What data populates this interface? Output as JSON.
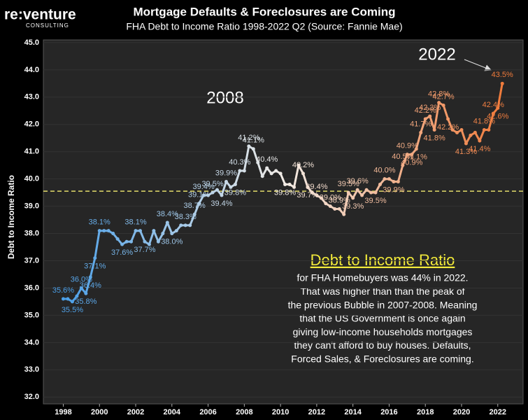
{
  "chart_data": {
    "type": "line",
    "logo": {
      "name": "re:venture",
      "tagline": "CONSULTING"
    },
    "title": "Mortgage Defaults & Foreclosures are Coming",
    "subtitle": "FHA Debt to Income Ratio 1998-2022 Q2 (Source: Fannie Mae)",
    "y_label": "Debt to Income Ratio",
    "x": [
      1998,
      1998.25,
      1998.5,
      1998.75,
      1999,
      1999.25,
      1999.5,
      1999.75,
      2000,
      2000.25,
      2000.5,
      2000.75,
      2001,
      2001.25,
      2001.5,
      2001.75,
      2002,
      2002.25,
      2002.5,
      2002.75,
      2003,
      2003.25,
      2003.5,
      2003.75,
      2004,
      2004.25,
      2004.5,
      2004.75,
      2005,
      2005.25,
      2005.5,
      2005.75,
      2006,
      2006.25,
      2006.5,
      2006.75,
      2007,
      2007.25,
      2007.5,
      2007.75,
      2008,
      2008.25,
      2008.5,
      2008.75,
      2009,
      2009.25,
      2009.5,
      2009.75,
      2010,
      2010.25,
      2010.5,
      2010.75,
      2011,
      2011.25,
      2011.5,
      2011.75,
      2012,
      2012.25,
      2012.5,
      2012.75,
      2013,
      2013.25,
      2013.5,
      2013.75,
      2014,
      2014.25,
      2014.5,
      2014.75,
      2015,
      2015.25,
      2015.5,
      2015.75,
      2016,
      2016.25,
      2016.5,
      2016.75,
      2017,
      2017.25,
      2017.5,
      2017.75,
      2018,
      2018.25,
      2018.5,
      2018.75,
      2019,
      2019.25,
      2019.5,
      2019.75,
      2020,
      2020.25,
      2020.5,
      2020.75,
      2021,
      2021.25,
      2021.5,
      2021.75,
      2022,
      2022.25
    ],
    "values": [
      35.6,
      35.6,
      35.5,
      35.7,
      36.0,
      35.8,
      36.4,
      37.1,
      38.1,
      38.1,
      38.1,
      38.0,
      37.8,
      37.6,
      37.7,
      37.7,
      38.1,
      38.1,
      37.7,
      37.6,
      38.1,
      37.7,
      38.0,
      38.4,
      38.0,
      38.1,
      38.3,
      38.3,
      38.3,
      38.7,
      39.1,
      39.4,
      39.4,
      39.5,
      39.6,
      39.4,
      39.9,
      39.7,
      39.8,
      40.3,
      40.3,
      41.2,
      41.1,
      40.6,
      40.1,
      40.4,
      40.2,
      40.3,
      40.2,
      39.8,
      39.8,
      39.7,
      40.5,
      40.2,
      39.7,
      39.5,
      39.4,
      39.3,
      39.1,
      39.0,
      38.9,
      38.9,
      38.7,
      39.5,
      39.3,
      39.6,
      39.4,
      39.6,
      39.5,
      39.5,
      39.8,
      40.0,
      40.0,
      39.9,
      39.9,
      40.5,
      40.9,
      40.9,
      41.1,
      41.7,
      42.2,
      42.3,
      41.8,
      42.8,
      42.7,
      42.2,
      41.8,
      41.7,
      41.8,
      41.3,
      41.6,
      41.7,
      41.4,
      41.8,
      41.8,
      42.4,
      42.6,
      43.5
    ],
    "value_labels": [
      "35.6%",
      null,
      "35.5%",
      null,
      "36.0%",
      "35.8%",
      "36.4%",
      "37.1%",
      "38.1%",
      null,
      null,
      null,
      null,
      "37.6%",
      null,
      null,
      "38.1%",
      null,
      "37.7%",
      null,
      null,
      null,
      null,
      "38.4%",
      "38.0%",
      null,
      null,
      "38.3%",
      null,
      "38.7%",
      "39.1%",
      "39.4%",
      null,
      "39.5%",
      null,
      "39.4%",
      "39.9%",
      null,
      "39.8%",
      "40.3%",
      null,
      "41.2%",
      "41.1%",
      null,
      null,
      "40.4%",
      null,
      null,
      null,
      "39.8%",
      null,
      null,
      null,
      "40.2%",
      "39.7%",
      null,
      "39.4%",
      null,
      null,
      "39.0%",
      null,
      "38.9%",
      null,
      "39.5%",
      "39.3%",
      "39.6%",
      null,
      null,
      null,
      "39.5%",
      null,
      "40.0%",
      null,
      "39.9%",
      null,
      "40.5%",
      "40.9%",
      "40.9%",
      "41.1%",
      "41.7%",
      "42.2%",
      "42.3%",
      "41.8%",
      "42.8%",
      "42.7%",
      "42.2%",
      null,
      null,
      null,
      "41.3%",
      null,
      null,
      "41.4%",
      "41.8%",
      null,
      "42.4%",
      "42.6%",
      "43.5%"
    ],
    "colors": [
      "#4a9fe8",
      "#f2ece6",
      "#f07a3a"
    ],
    "reference_line": {
      "value": 39.55,
      "color": "#e3dc6a"
    },
    "xlim": [
      1996.9,
      2023.4
    ],
    "xticks": [
      1998,
      2000,
      2002,
      2004,
      2006,
      2008,
      2010,
      2012,
      2014,
      2016,
      2018,
      2020,
      2022
    ],
    "ylim": [
      31.75,
      45.1
    ],
    "yticks": [
      {
        "value": 32,
        "label": "32.0"
      },
      {
        "value": 33,
        "label": "33.0"
      },
      {
        "value": 34,
        "label": "34.0"
      },
      {
        "value": 35,
        "label": "35.0"
      },
      {
        "value": 36,
        "label": "36.0"
      },
      {
        "value": 37,
        "label": "37.0"
      },
      {
        "value": 38,
        "label": "38.0"
      },
      {
        "value": 39,
        "label": "39.0"
      },
      {
        "value": 40,
        "label": "40.0"
      },
      {
        "value": 41,
        "label": "41.0"
      },
      {
        "value": 42,
        "label": "42.0"
      },
      {
        "value": 43,
        "label": "43.0"
      },
      {
        "value": 44,
        "label": "44.0"
      },
      {
        "value": 45,
        "label": "45.0"
      }
    ],
    "grid": true,
    "annotations": [
      "2008",
      "2022"
    ],
    "text_box": {
      "heading": "Debt to Income Ratio",
      "lines": [
        "for FHA Homebuyers was 44% in 2022.",
        "That was higher than than the peak of",
        "the previous Bubble in 2007-2008. Meaning",
        "that the US Government is once again",
        "giving low-income households mortgages",
        "they can't afford to buy houses. Defaults,",
        "Forced Sales, & Foreclosures are coming."
      ]
    }
  }
}
